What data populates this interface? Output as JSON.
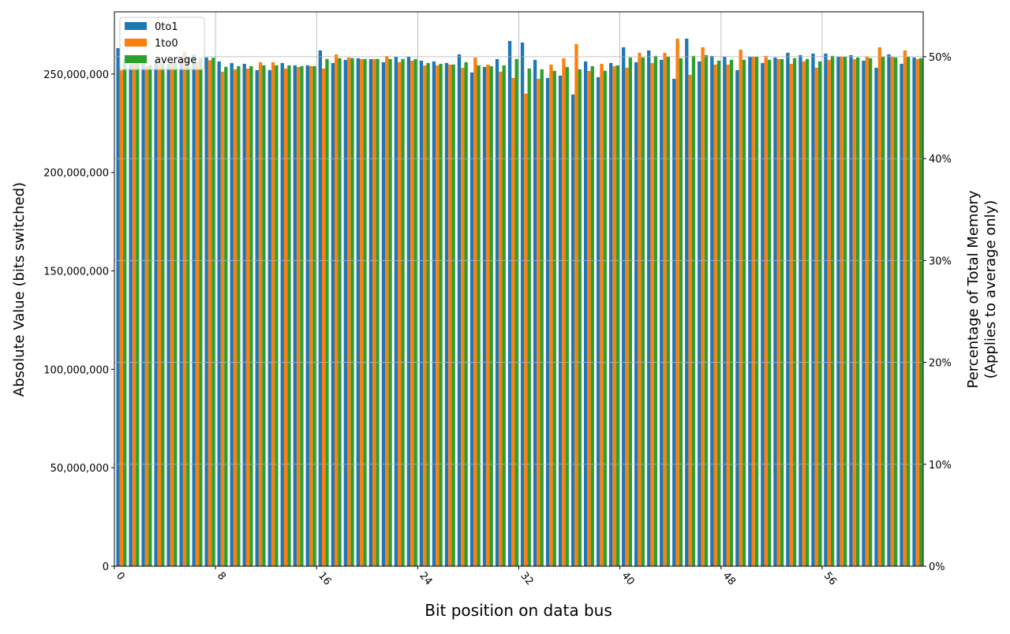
{
  "chart_data": {
    "type": "bar",
    "xlabel": "Bit position on data bus",
    "ylabel": "Absolute Value (bits switched)",
    "y2label": [
      "Percentage of Total Memory",
      "(Applies to average only)"
    ],
    "xlim": [
      0,
      64
    ],
    "xticks": [
      0,
      8,
      16,
      24,
      32,
      40,
      48,
      56
    ],
    "ylim": [
      0,
      281600000
    ],
    "yticks": [
      {
        "value": 0,
        "label": "0"
      },
      {
        "value": 50000000,
        "label": "50,000,000"
      },
      {
        "value": 100000000,
        "label": "100,000,000"
      },
      {
        "value": 150000000,
        "label": "150,000,000"
      },
      {
        "value": 200000000,
        "label": "200,000,000"
      },
      {
        "value": 250000000,
        "label": "250,000,000"
      }
    ],
    "y2lim": [
      0,
      54.4
    ],
    "y2ticks": [
      {
        "value": 0,
        "label": "0%"
      },
      {
        "value": 10,
        "label": "10%"
      },
      {
        "value": 20,
        "label": "20%"
      },
      {
        "value": 30,
        "label": "30%"
      },
      {
        "value": 40,
        "label": "40%"
      },
      {
        "value": 50,
        "label": "50%"
      }
    ],
    "grid": true,
    "legend": "upper left",
    "x": [
      0,
      1,
      2,
      3,
      4,
      5,
      6,
      7,
      8,
      9,
      10,
      11,
      12,
      13,
      14,
      15,
      16,
      17,
      18,
      19,
      20,
      21,
      22,
      23,
      24,
      25,
      26,
      27,
      28,
      29,
      30,
      31,
      32,
      33,
      34,
      35,
      36,
      37,
      38,
      39,
      40,
      41,
      42,
      43,
      44,
      45,
      46,
      47,
      48,
      49,
      50,
      51,
      52,
      53,
      54,
      55,
      56,
      57,
      58,
      59,
      60,
      61,
      62,
      63
    ],
    "series": [
      {
        "name": "0to1",
        "color": "#1f77b4",
        "values": [
          263200000,
          255000000,
          256000000,
          257000000,
          255000000,
          257000000,
          260000000,
          258400000,
          256400000,
          255600000,
          255200000,
          252000000,
          252000000,
          255600000,
          254400000,
          254400000,
          262000000,
          255600000,
          257200000,
          258000000,
          257600000,
          256000000,
          258800000,
          258800000,
          256800000,
          256400000,
          255600000,
          260000000,
          250800000,
          253600000,
          257600000,
          266800000,
          266000000,
          257200000,
          248000000,
          249200000,
          239600000,
          256400000,
          248400000,
          255600000,
          263600000,
          256000000,
          262000000,
          257200000,
          247600000,
          268000000,
          256400000,
          259200000,
          258800000,
          252000000,
          258800000,
          255600000,
          258400000,
          260800000,
          259600000,
          260400000,
          260400000,
          258800000,
          259600000,
          256800000,
          253200000,
          260000000,
          255200000,
          258400000
        ]
      },
      {
        "name": "1to0",
        "color": "#ff7f0e",
        "values": [
          252000000,
          257000000,
          254000000,
          255000000,
          257000000,
          261600000,
          256000000,
          257000000,
          251200000,
          252400000,
          252800000,
          256000000,
          256000000,
          252800000,
          253600000,
          254000000,
          252800000,
          260000000,
          258400000,
          257600000,
          257600000,
          259200000,
          256000000,
          256800000,
          254400000,
          254400000,
          254800000,
          253200000,
          258400000,
          254800000,
          251200000,
          248000000,
          240000000,
          247600000,
          254800000,
          258000000,
          265200000,
          251600000,
          255200000,
          254000000,
          253200000,
          260800000,
          255600000,
          260800000,
          268000000,
          249600000,
          263600000,
          254800000,
          254800000,
          262400000,
          258800000,
          259200000,
          257600000,
          255200000,
          256400000,
          253200000,
          257200000,
          258800000,
          257600000,
          258800000,
          263600000,
          258800000,
          262000000,
          257600000
        ]
      },
      {
        "name": "average",
        "color": "#2ca02c",
        "axis": "y2",
        "values": [
          49.7,
          49.5,
          49.2,
          49.4,
          49.4,
          50.0,
          49.9,
          49.9,
          49.0,
          49.07,
          49.07,
          49.15,
          49.15,
          49.15,
          49.07,
          49.07,
          49.77,
          49.85,
          49.85,
          49.77,
          49.77,
          49.77,
          49.77,
          49.77,
          49.38,
          49.3,
          49.23,
          49.46,
          49.15,
          49.07,
          49.15,
          49.77,
          48.84,
          48.76,
          48.61,
          48.99,
          48.76,
          49.07,
          48.61,
          49.15,
          49.92,
          49.92,
          50.08,
          50.0,
          49.85,
          50.08,
          50.15,
          49.61,
          49.69,
          49.69,
          50.0,
          49.69,
          49.77,
          49.85,
          49.77,
          49.54,
          50.08,
          50.0,
          49.92,
          49.85,
          50.0,
          49.92,
          50.0,
          49.85
        ]
      }
    ]
  }
}
